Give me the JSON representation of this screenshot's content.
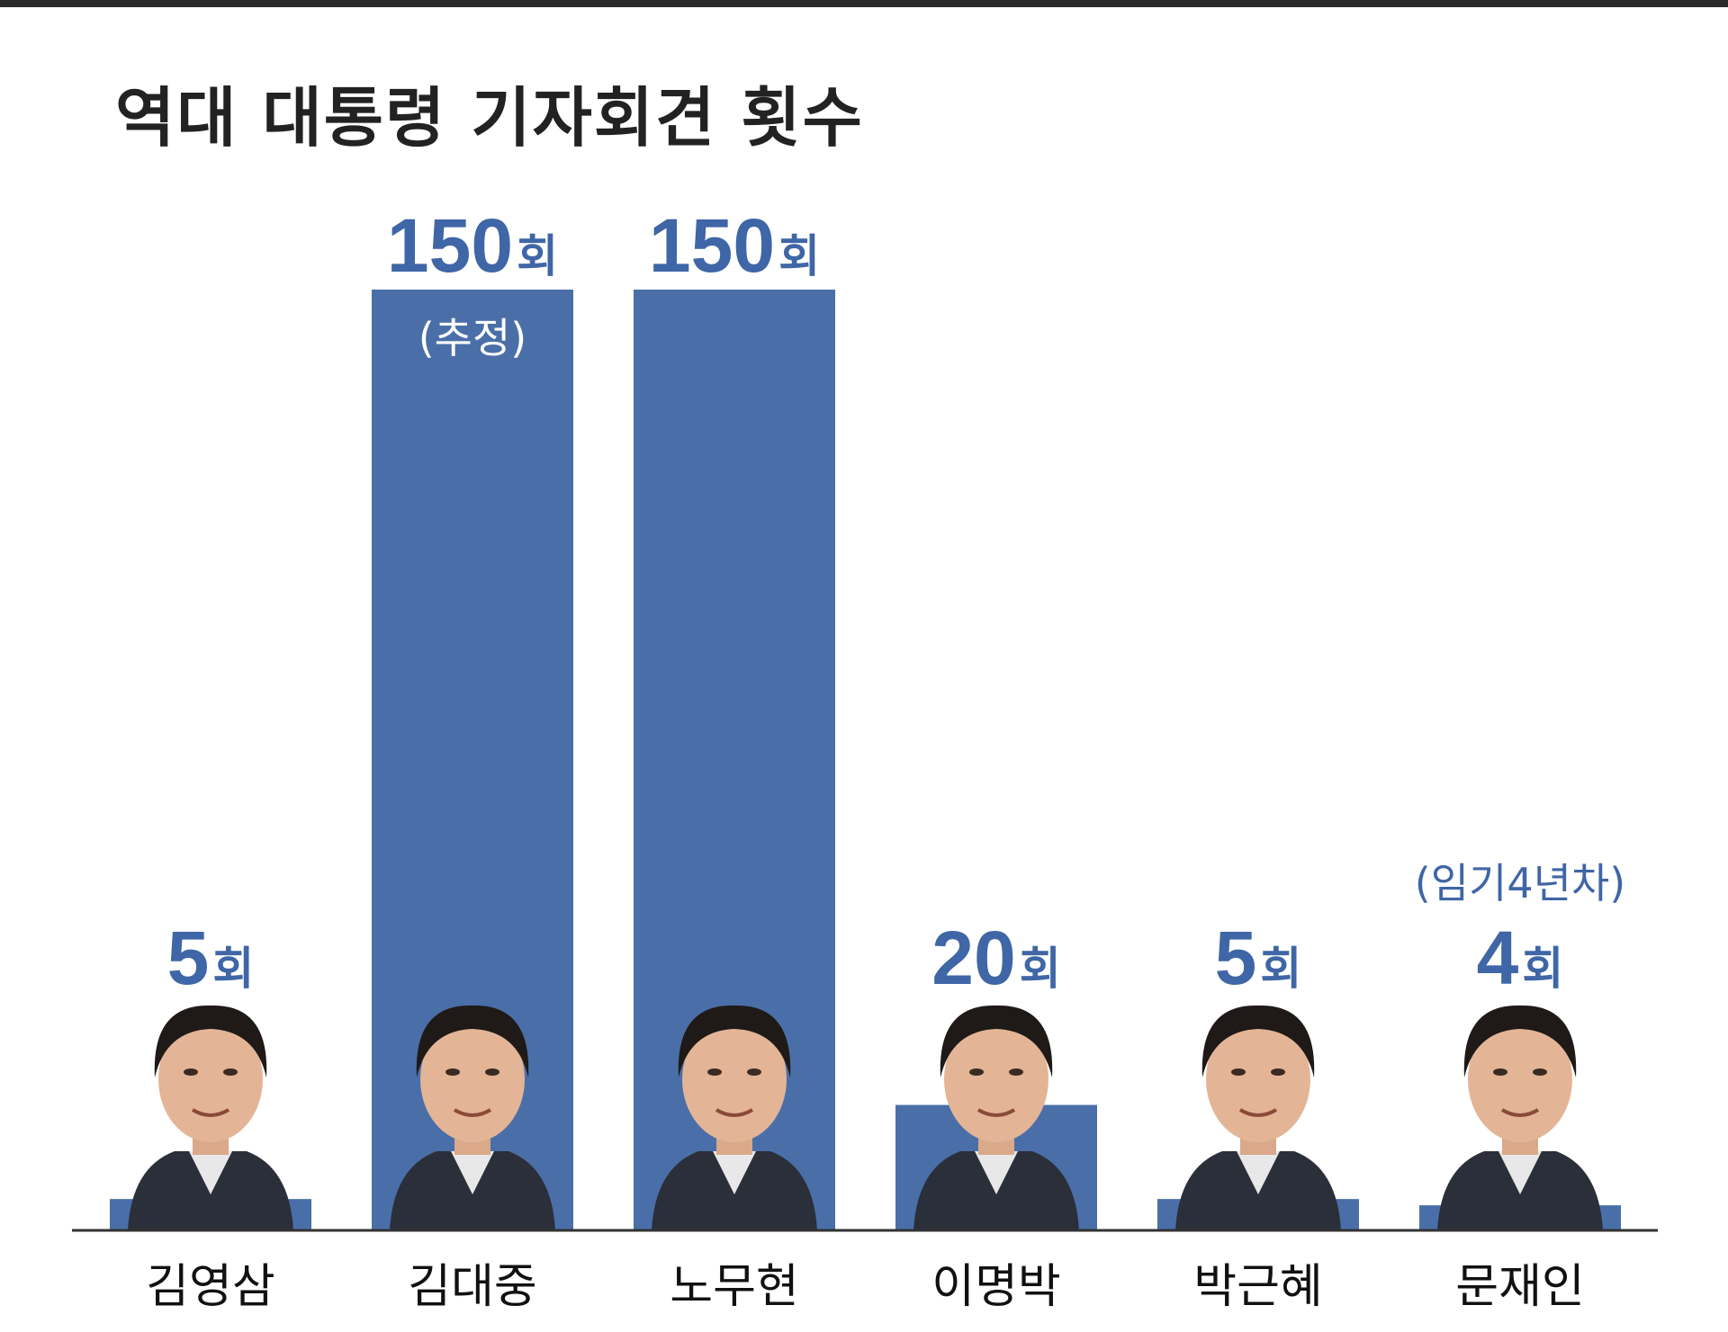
{
  "title": "역대 대통령 기자회견 횟수",
  "chart_data": {
    "type": "bar",
    "title": "역대 대통령 기자회견 횟수",
    "categories": [
      "김영삼",
      "김대중",
      "노무현",
      "이명박",
      "박근혜",
      "문재인"
    ],
    "values": [
      5,
      150,
      150,
      20,
      5,
      4
    ],
    "unit": "회",
    "notes": [
      "",
      "(추정)",
      "",
      "",
      "",
      "(임기4년차)"
    ],
    "ylim": [
      0,
      150
    ],
    "grid": false,
    "legend": "none",
    "bar_color": "#4a6fa8",
    "label_color": "#3f66a6",
    "portraits": [
      "person-portrait",
      "person-portrait",
      "person-portrait",
      "person-portrait",
      "person-portrait",
      "person-portrait"
    ]
  }
}
